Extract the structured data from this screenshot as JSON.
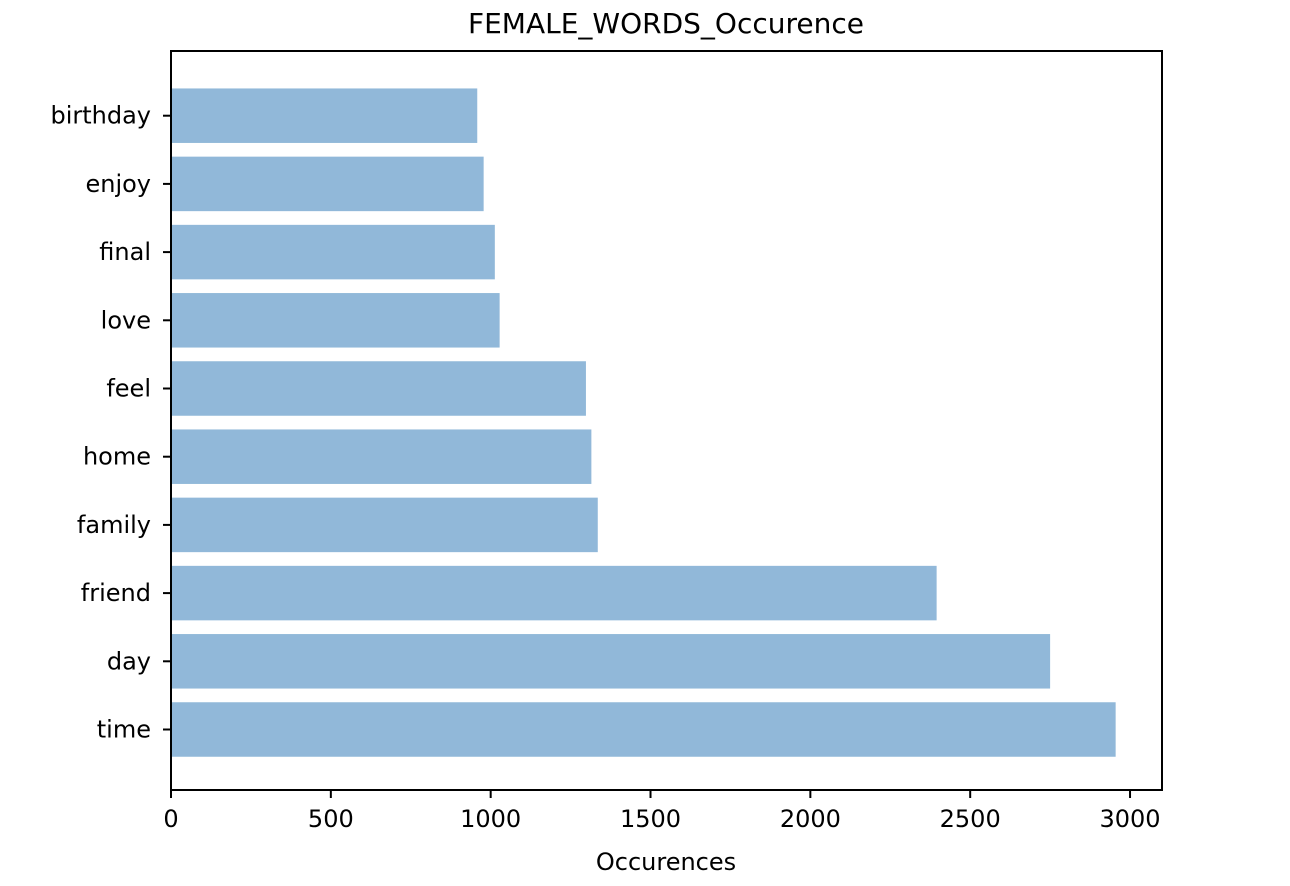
{
  "chart_data": {
    "type": "bar",
    "orientation": "horizontal",
    "title": "FEMALE_WORDS_Occurence",
    "xlabel": "Occurences",
    "ylabel": "",
    "categories": [
      "time",
      "day",
      "friend",
      "family",
      "home",
      "feel",
      "love",
      "final",
      "enjoy",
      "birthday"
    ],
    "values": [
      2955,
      2750,
      2395,
      1335,
      1315,
      1298,
      1028,
      1013,
      978,
      958
    ],
    "xlim": [
      0,
      3100
    ],
    "xticks": [
      0,
      500,
      1000,
      1500,
      2000,
      2500,
      3000
    ],
    "xtick_labels": [
      "0",
      "500",
      "1000",
      "1500",
      "2000",
      "2500",
      "3000"
    ],
    "grid": false,
    "legend": "none",
    "bar_color": "#91b8d9"
  }
}
